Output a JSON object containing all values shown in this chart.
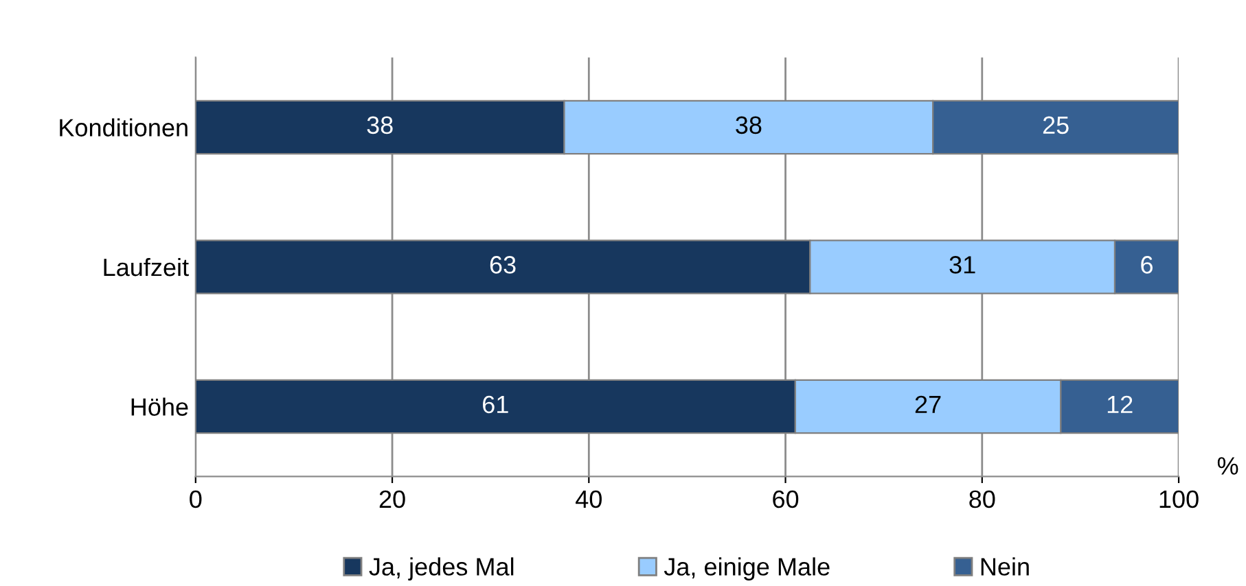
{
  "chart_data": {
    "type": "bar",
    "orientation": "horizontal",
    "stacked": true,
    "xlabel": "%",
    "categories": [
      "Konditionen",
      "Laufzeit",
      "Höhe"
    ],
    "series": [
      {
        "name": "Ja, jedes Mal",
        "color": "#17375e",
        "values": [
          37.5,
          62.5,
          61
        ],
        "value_labels": [
          "38",
          "63",
          "61"
        ]
      },
      {
        "name": "Ja, einige Male",
        "color": "#99ccff",
        "values": [
          37.5,
          31,
          27
        ],
        "value_labels": [
          "38",
          "31",
          "27"
        ]
      },
      {
        "name": "Nein",
        "color": "#366092",
        "values": [
          25,
          6.5,
          12
        ],
        "value_labels": [
          "25",
          "6",
          "12"
        ]
      }
    ],
    "xlim": [
      0,
      100
    ],
    "xticks": [
      0,
      20,
      40,
      60,
      80,
      100
    ],
    "grid": "x",
    "legend": "bottom"
  }
}
